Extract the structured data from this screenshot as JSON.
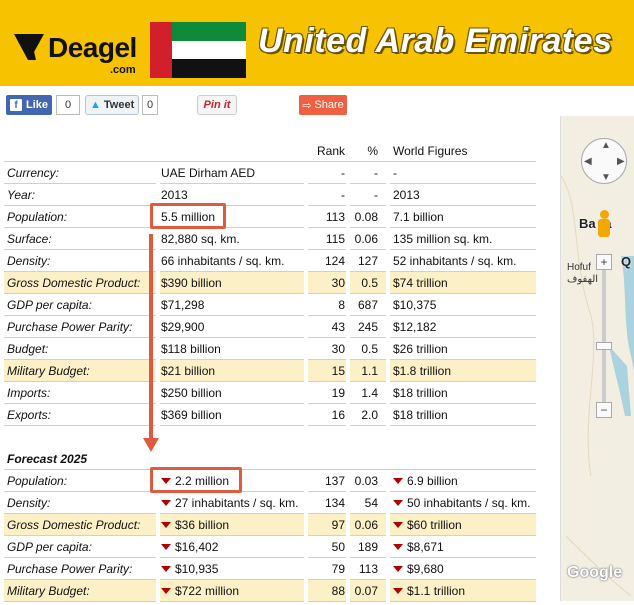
{
  "header": {
    "logo_text": "Deagel",
    "logo_sub": ".com",
    "title": "United Arab Emirates"
  },
  "social": {
    "like_label": "Like",
    "like_count": "0",
    "tweet_label": "Tweet",
    "tweet_count": "0",
    "pin_label": "Pin it",
    "share_label": "Share"
  },
  "table": {
    "headers": {
      "rank": "Rank",
      "pct": "%",
      "world": "World Figures"
    },
    "rows": [
      {
        "label": "Currency:",
        "value": "UAE Dirham AED",
        "rank": "-",
        "pct": "-",
        "world": "-",
        "hl": false
      },
      {
        "label": "Year:",
        "value": "2013",
        "rank": "-",
        "pct": "-",
        "world": "2013",
        "hl": false
      },
      {
        "label": "Population:",
        "value": "5.5 million",
        "rank": "113",
        "pct": "0.08",
        "world": "7.1 billion",
        "hl": false
      },
      {
        "label": "Surface:",
        "value": "82,880 sq. km.",
        "rank": "115",
        "pct": "0.06",
        "world": "135 million sq. km.",
        "hl": false
      },
      {
        "label": "Density:",
        "value": "66 inhabitants / sq. km.",
        "rank": "124",
        "pct": "127",
        "world": "52 inhabitants / sq. km.",
        "hl": false
      },
      {
        "label": "Gross Domestic Product:",
        "value": "$390 billion",
        "rank": "30",
        "pct": "0.5",
        "world": "$74 trillion",
        "hl": true
      },
      {
        "label": "GDP per capita:",
        "value": "$71,298",
        "rank": "8",
        "pct": "687",
        "world": "$10,375",
        "hl": false
      },
      {
        "label": "Purchase Power Parity:",
        "value": "$29,900",
        "rank": "43",
        "pct": "245",
        "world": "$12,182",
        "hl": false
      },
      {
        "label": "Budget:",
        "value": "$118 billion",
        "rank": "30",
        "pct": "0.5",
        "world": "$26 trillion",
        "hl": false
      },
      {
        "label": "Military Budget:",
        "value": "$21 billion",
        "rank": "15",
        "pct": "1.1",
        "world": "$1.8 trillion",
        "hl": true
      },
      {
        "label": "Imports:",
        "value": "$250 billion",
        "rank": "19",
        "pct": "1.4",
        "world": "$18 trillion",
        "hl": false
      },
      {
        "label": "Exports:",
        "value": "$369 billion",
        "rank": "16",
        "pct": "2.0",
        "world": "$18 trillion",
        "hl": false
      }
    ],
    "forecast_title": "Forecast 2025",
    "forecast_rows": [
      {
        "label": "Population:",
        "value": "2.2 million",
        "rank": "137",
        "pct": "0.03",
        "world": "6.9 billion",
        "hl": false
      },
      {
        "label": "Density:",
        "value": "27 inhabitants / sq. km.",
        "rank": "134",
        "pct": "54",
        "world": "50 inhabitants / sq. km.",
        "hl": false
      },
      {
        "label": "Gross Domestic Product:",
        "value": "$36 billion",
        "rank": "97",
        "pct": "0.06",
        "world": "$60 trillion",
        "hl": true
      },
      {
        "label": "GDP per capita:",
        "value": "$16,402",
        "rank": "50",
        "pct": "189",
        "world": "$8,671",
        "hl": false
      },
      {
        "label": "Purchase Power Parity:",
        "value": "$10,935",
        "rank": "79",
        "pct": "113",
        "world": "$9,680",
        "hl": false
      },
      {
        "label": "Military Budget:",
        "value": "$722 million",
        "rank": "88",
        "pct": "0.07",
        "world": "$1.1 trillion",
        "hl": true
      }
    ]
  },
  "map": {
    "label_bahrain": "Ba ra",
    "label_q": "Q",
    "label_hofuf": "Hofuf",
    "label_hofuf_ar": "الهفوف",
    "zoom_in": "+",
    "zoom_out": "−",
    "attribution": "Google"
  },
  "colors": {
    "header_bg": "#f7c200",
    "highlight_row": "#fbf0c6",
    "annotation": "#e05a40",
    "decrease_marker": "#b00000"
  }
}
